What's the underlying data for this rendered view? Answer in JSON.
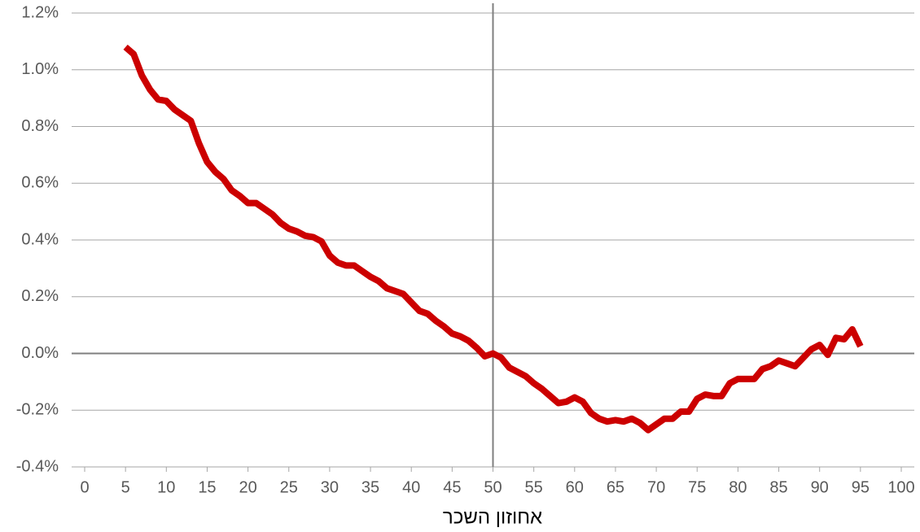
{
  "chart_data": {
    "type": "line",
    "x_label": "אחוזון השכר",
    "x": [
      5,
      6,
      7,
      8,
      9,
      10,
      11,
      12,
      13,
      14,
      15,
      16,
      17,
      18,
      19,
      20,
      21,
      22,
      23,
      24,
      25,
      26,
      27,
      28,
      29,
      30,
      31,
      32,
      33,
      34,
      35,
      36,
      37,
      38,
      39,
      40,
      41,
      42,
      43,
      44,
      45,
      46,
      47,
      48,
      49,
      50,
      51,
      52,
      53,
      54,
      55,
      56,
      57,
      58,
      59,
      60,
      61,
      62,
      63,
      64,
      65,
      66,
      67,
      68,
      69,
      70,
      71,
      72,
      73,
      74,
      75,
      76,
      77,
      78,
      79,
      80,
      81,
      82,
      83,
      84,
      85,
      86,
      87,
      88,
      89,
      90,
      91,
      92,
      93,
      94,
      95
    ],
    "series": [
      {
        "color": "#cc0000",
        "values": [
          1.08,
          1.055,
          0.98,
          0.93,
          0.895,
          0.89,
          0.86,
          0.84,
          0.82,
          0.74,
          0.675,
          0.64,
          0.615,
          0.575,
          0.555,
          0.53,
          0.53,
          0.51,
          0.49,
          0.46,
          0.44,
          0.43,
          0.415,
          0.41,
          0.395,
          0.345,
          0.32,
          0.31,
          0.31,
          0.29,
          0.27,
          0.255,
          0.23,
          0.22,
          0.21,
          0.18,
          0.15,
          0.14,
          0.115,
          0.095,
          0.07,
          0.06,
          0.045,
          0.02,
          -0.01,
          0,
          -0.015,
          -0.05,
          -0.065,
          -0.08,
          -0.105,
          -0.125,
          -0.15,
          -0.175,
          -0.17,
          -0.155,
          -0.17,
          -0.21,
          -0.23,
          -0.24,
          -0.235,
          -0.24,
          -0.23,
          -0.245,
          -0.27,
          -0.25,
          -0.23,
          -0.23,
          -0.205,
          -0.205,
          -0.16,
          -0.145,
          -0.15,
          -0.15,
          -0.105,
          -0.09,
          -0.09,
          -0.09,
          -0.055,
          -0.045,
          -0.025,
          -0.035,
          -0.045,
          -0.015,
          0.015,
          0.03,
          -0.005,
          0.055,
          0.05,
          0.085,
          0.025
        ]
      }
    ],
    "xlim": [
      0,
      100
    ],
    "xticks": [
      0,
      5,
      10,
      15,
      20,
      25,
      30,
      35,
      40,
      45,
      50,
      55,
      60,
      65,
      70,
      75,
      80,
      85,
      90,
      95,
      100
    ],
    "ylim": [
      -0.4,
      1.2
    ],
    "yticks": [
      {
        "value": -0.4,
        "label": "-0.4%"
      },
      {
        "value": -0.2,
        "label": "-0.2%"
      },
      {
        "value": 0,
        "label": "0.0%"
      },
      {
        "value": 0.2,
        "label": "0.2%"
      },
      {
        "value": 0.4,
        "label": "0.4%"
      },
      {
        "value": 0.6,
        "label": "0.6%"
      },
      {
        "value": 0.8,
        "label": "0.8%"
      },
      {
        "value": 1.0,
        "label": "1.0%"
      },
      {
        "value": 1.2,
        "label": "1.2%"
      }
    ],
    "vline": 50,
    "grid": true
  }
}
